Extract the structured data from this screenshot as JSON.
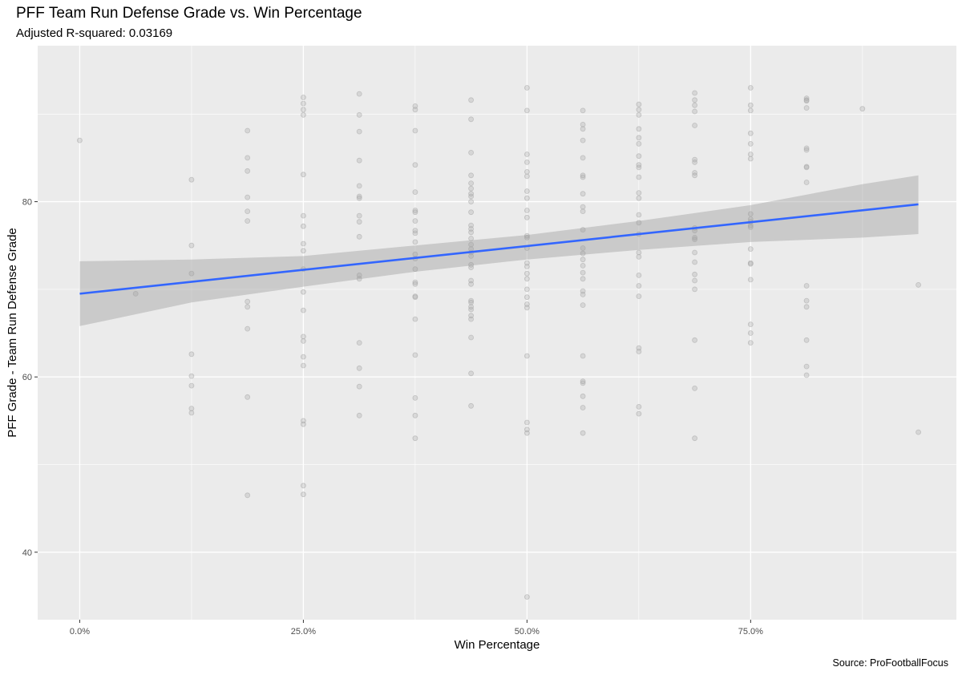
{
  "title": "PFF Team Run Defense Grade vs. Win Percentage",
  "subtitle": "Adjusted R-squared:  0.03169",
  "caption": "Source: ProFootballFocus",
  "colors": {
    "panel": "#ebebeb",
    "grid_major": "#ffffff",
    "point": "#a6a6a6",
    "ribbon": "#bfbfbf",
    "line": "#3366ff"
  },
  "chart_data": {
    "type": "scatter",
    "xlabel": "Win Percentage",
    "ylabel": "PFF Grade - Team Run Defense Grade",
    "xlim": [
      -0.047,
      0.98
    ],
    "ylim": [
      32.3,
      97.8
    ],
    "x_ticks": [
      {
        "value": 0.0,
        "label": "0.0%"
      },
      {
        "value": 0.25,
        "label": "25.0%"
      },
      {
        "value": 0.5,
        "label": "50.0%"
      },
      {
        "value": 0.75,
        "label": "75.0%"
      }
    ],
    "y_ticks": [
      {
        "value": 40,
        "label": "40"
      },
      {
        "value": 60,
        "label": "60"
      },
      {
        "value": 80,
        "label": "80"
      }
    ],
    "grid": true,
    "fit": {
      "method": "linear",
      "x": [
        0.0,
        0.9375
      ],
      "y": [
        69.5,
        79.7
      ],
      "ribbon": [
        {
          "x": 0.0,
          "lower": 65.8,
          "upper": 73.2
        },
        {
          "x": 0.125,
          "lower": 68.5,
          "upper": 73.4
        },
        {
          "x": 0.25,
          "lower": 70.3,
          "upper": 73.8
        },
        {
          "x": 0.375,
          "lower": 72.0,
          "upper": 75.0
        },
        {
          "x": 0.5,
          "lower": 73.4,
          "upper": 76.2
        },
        {
          "x": 0.625,
          "lower": 74.5,
          "upper": 77.8
        },
        {
          "x": 0.75,
          "lower": 75.4,
          "upper": 79.6
        },
        {
          "x": 0.875,
          "lower": 75.9,
          "upper": 82.0
        },
        {
          "x": 0.9375,
          "lower": 76.3,
          "upper": 83.0
        }
      ]
    },
    "points": [
      [
        0.0,
        87.0
      ],
      [
        0.0625,
        69.5
      ],
      [
        0.125,
        82.5
      ],
      [
        0.125,
        75.0
      ],
      [
        0.125,
        71.8
      ],
      [
        0.125,
        62.6
      ],
      [
        0.125,
        60.1
      ],
      [
        0.125,
        59.0
      ],
      [
        0.125,
        56.4
      ],
      [
        0.125,
        55.9
      ],
      [
        0.1875,
        88.1
      ],
      [
        0.1875,
        85.0
      ],
      [
        0.1875,
        83.5
      ],
      [
        0.1875,
        80.5
      ],
      [
        0.1875,
        78.9
      ],
      [
        0.1875,
        77.8
      ],
      [
        0.1875,
        68.6
      ],
      [
        0.1875,
        68.0
      ],
      [
        0.1875,
        65.5
      ],
      [
        0.1875,
        57.7
      ],
      [
        0.1875,
        46.5
      ],
      [
        0.25,
        91.9
      ],
      [
        0.25,
        91.2
      ],
      [
        0.25,
        90.5
      ],
      [
        0.25,
        89.9
      ],
      [
        0.25,
        83.1
      ],
      [
        0.25,
        78.4
      ],
      [
        0.25,
        77.2
      ],
      [
        0.25,
        75.2
      ],
      [
        0.25,
        74.4
      ],
      [
        0.25,
        72.3
      ],
      [
        0.25,
        69.7
      ],
      [
        0.25,
        67.6
      ],
      [
        0.25,
        64.6
      ],
      [
        0.25,
        64.1
      ],
      [
        0.25,
        62.3
      ],
      [
        0.25,
        61.3
      ],
      [
        0.25,
        55.0
      ],
      [
        0.25,
        54.6
      ],
      [
        0.25,
        47.6
      ],
      [
        0.25,
        46.6
      ],
      [
        0.3125,
        92.3
      ],
      [
        0.3125,
        89.9
      ],
      [
        0.3125,
        88.0
      ],
      [
        0.3125,
        84.7
      ],
      [
        0.3125,
        81.8
      ],
      [
        0.3125,
        80.6
      ],
      [
        0.3125,
        80.4
      ],
      [
        0.3125,
        78.4
      ],
      [
        0.3125,
        77.7
      ],
      [
        0.3125,
        76.0
      ],
      [
        0.3125,
        71.6
      ],
      [
        0.3125,
        71.2
      ],
      [
        0.3125,
        63.9
      ],
      [
        0.3125,
        61.0
      ],
      [
        0.3125,
        58.9
      ],
      [
        0.3125,
        55.6
      ],
      [
        0.375,
        90.9
      ],
      [
        0.375,
        90.5
      ],
      [
        0.375,
        88.1
      ],
      [
        0.375,
        84.2
      ],
      [
        0.375,
        81.1
      ],
      [
        0.375,
        79.0
      ],
      [
        0.375,
        78.8
      ],
      [
        0.375,
        77.8
      ],
      [
        0.375,
        76.7
      ],
      [
        0.375,
        76.4
      ],
      [
        0.375,
        75.4
      ],
      [
        0.375,
        74.0
      ],
      [
        0.375,
        73.5
      ],
      [
        0.375,
        72.3
      ],
      [
        0.375,
        70.8
      ],
      [
        0.375,
        70.6
      ],
      [
        0.375,
        69.2
      ],
      [
        0.375,
        69.1
      ],
      [
        0.375,
        66.6
      ],
      [
        0.375,
        62.5
      ],
      [
        0.375,
        57.6
      ],
      [
        0.375,
        55.6
      ],
      [
        0.375,
        53.0
      ],
      [
        0.4375,
        91.6
      ],
      [
        0.4375,
        89.4
      ],
      [
        0.4375,
        85.6
      ],
      [
        0.4375,
        83.0
      ],
      [
        0.4375,
        82.1
      ],
      [
        0.4375,
        81.5
      ],
      [
        0.4375,
        80.9
      ],
      [
        0.4375,
        80.6
      ],
      [
        0.4375,
        80.0
      ],
      [
        0.4375,
        78.8
      ],
      [
        0.4375,
        77.3
      ],
      [
        0.4375,
        76.9
      ],
      [
        0.4375,
        76.5
      ],
      [
        0.4375,
        75.8
      ],
      [
        0.4375,
        75.1
      ],
      [
        0.4375,
        74.6
      ],
      [
        0.4375,
        74.2
      ],
      [
        0.4375,
        73.8
      ],
      [
        0.4375,
        72.8
      ],
      [
        0.4375,
        72.5
      ],
      [
        0.4375,
        71.0
      ],
      [
        0.4375,
        70.6
      ],
      [
        0.4375,
        68.7
      ],
      [
        0.4375,
        68.5
      ],
      [
        0.4375,
        68.0
      ],
      [
        0.4375,
        67.7
      ],
      [
        0.4375,
        67.0
      ],
      [
        0.4375,
        66.6
      ],
      [
        0.4375,
        64.5
      ],
      [
        0.4375,
        60.4
      ],
      [
        0.4375,
        56.7
      ],
      [
        0.5,
        93.0
      ],
      [
        0.5,
        90.4
      ],
      [
        0.5,
        85.4
      ],
      [
        0.5,
        84.5
      ],
      [
        0.5,
        83.4
      ],
      [
        0.5,
        82.9
      ],
      [
        0.5,
        81.2
      ],
      [
        0.5,
        80.4
      ],
      [
        0.5,
        79.0
      ],
      [
        0.5,
        78.2
      ],
      [
        0.5,
        76.1
      ],
      [
        0.5,
        75.9
      ],
      [
        0.5,
        74.7
      ],
      [
        0.5,
        73.0
      ],
      [
        0.5,
        72.6
      ],
      [
        0.5,
        71.8
      ],
      [
        0.5,
        71.2
      ],
      [
        0.5,
        70.0
      ],
      [
        0.5,
        69.1
      ],
      [
        0.5,
        68.3
      ],
      [
        0.5,
        67.9
      ],
      [
        0.5,
        62.4
      ],
      [
        0.5,
        54.8
      ],
      [
        0.5,
        54.0
      ],
      [
        0.5,
        53.6
      ],
      [
        0.5,
        34.9
      ],
      [
        0.5625,
        90.4
      ],
      [
        0.5625,
        88.8
      ],
      [
        0.5625,
        88.3
      ],
      [
        0.5625,
        87.0
      ],
      [
        0.5625,
        85.0
      ],
      [
        0.5625,
        83.0
      ],
      [
        0.5625,
        82.8
      ],
      [
        0.5625,
        80.9
      ],
      [
        0.5625,
        79.4
      ],
      [
        0.5625,
        78.9
      ],
      [
        0.5625,
        76.8
      ],
      [
        0.5625,
        74.7
      ],
      [
        0.5625,
        74.1
      ],
      [
        0.5625,
        73.4
      ],
      [
        0.5625,
        72.7
      ],
      [
        0.5625,
        71.9
      ],
      [
        0.5625,
        71.2
      ],
      [
        0.5625,
        69.8
      ],
      [
        0.5625,
        69.4
      ],
      [
        0.5625,
        68.2
      ],
      [
        0.5625,
        62.4
      ],
      [
        0.5625,
        59.5
      ],
      [
        0.5625,
        59.3
      ],
      [
        0.5625,
        57.8
      ],
      [
        0.5625,
        56.5
      ],
      [
        0.5625,
        53.6
      ],
      [
        0.625,
        91.1
      ],
      [
        0.625,
        90.5
      ],
      [
        0.625,
        89.9
      ],
      [
        0.625,
        88.3
      ],
      [
        0.625,
        87.3
      ],
      [
        0.625,
        86.6
      ],
      [
        0.625,
        85.2
      ],
      [
        0.625,
        84.2
      ],
      [
        0.625,
        83.9
      ],
      [
        0.625,
        82.8
      ],
      [
        0.625,
        81.0
      ],
      [
        0.625,
        80.4
      ],
      [
        0.625,
        78.5
      ],
      [
        0.625,
        77.6
      ],
      [
        0.625,
        76.3
      ],
      [
        0.625,
        74.2
      ],
      [
        0.625,
        73.7
      ],
      [
        0.625,
        71.6
      ],
      [
        0.625,
        70.4
      ],
      [
        0.625,
        69.2
      ],
      [
        0.625,
        63.3
      ],
      [
        0.625,
        62.9
      ],
      [
        0.625,
        56.6
      ],
      [
        0.625,
        55.8
      ],
      [
        0.6875,
        92.4
      ],
      [
        0.6875,
        91.6
      ],
      [
        0.6875,
        91.0
      ],
      [
        0.6875,
        90.3
      ],
      [
        0.6875,
        88.7
      ],
      [
        0.6875,
        84.8
      ],
      [
        0.6875,
        84.5
      ],
      [
        0.6875,
        83.3
      ],
      [
        0.6875,
        83.0
      ],
      [
        0.6875,
        77.0
      ],
      [
        0.6875,
        76.7
      ],
      [
        0.6875,
        75.9
      ],
      [
        0.6875,
        75.7
      ],
      [
        0.6875,
        74.2
      ],
      [
        0.6875,
        73.1
      ],
      [
        0.6875,
        71.7
      ],
      [
        0.6875,
        71.0
      ],
      [
        0.6875,
        70.0
      ],
      [
        0.6875,
        64.2
      ],
      [
        0.6875,
        58.7
      ],
      [
        0.6875,
        53.0
      ],
      [
        0.75,
        93.0
      ],
      [
        0.75,
        91.0
      ],
      [
        0.75,
        90.4
      ],
      [
        0.75,
        87.8
      ],
      [
        0.75,
        86.6
      ],
      [
        0.75,
        85.4
      ],
      [
        0.75,
        84.9
      ],
      [
        0.75,
        78.6
      ],
      [
        0.75,
        78.0
      ],
      [
        0.75,
        77.7
      ],
      [
        0.75,
        77.3
      ],
      [
        0.75,
        77.1
      ],
      [
        0.75,
        74.6
      ],
      [
        0.75,
        73.0
      ],
      [
        0.75,
        72.9
      ],
      [
        0.75,
        71.1
      ],
      [
        0.75,
        66.0
      ],
      [
        0.75,
        65.0
      ],
      [
        0.75,
        63.9
      ],
      [
        0.8125,
        91.8
      ],
      [
        0.8125,
        91.6
      ],
      [
        0.8125,
        91.5
      ],
      [
        0.8125,
        90.7
      ],
      [
        0.8125,
        86.1
      ],
      [
        0.8125,
        85.9
      ],
      [
        0.8125,
        84.0
      ],
      [
        0.8125,
        83.9
      ],
      [
        0.8125,
        82.2
      ],
      [
        0.8125,
        70.4
      ],
      [
        0.8125,
        68.7
      ],
      [
        0.8125,
        68.0
      ],
      [
        0.8125,
        64.2
      ],
      [
        0.8125,
        61.2
      ],
      [
        0.8125,
        60.2
      ],
      [
        0.875,
        90.6
      ],
      [
        0.9375,
        70.5
      ],
      [
        0.9375,
        53.7
      ]
    ]
  }
}
